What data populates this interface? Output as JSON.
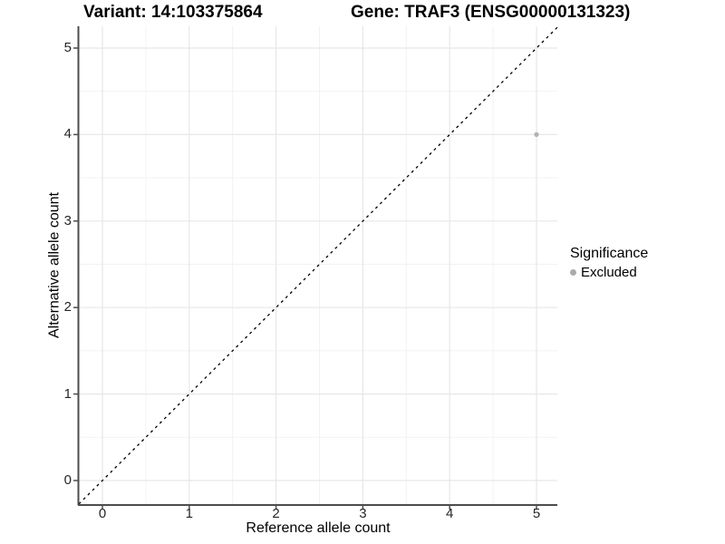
{
  "header": {
    "variant_title": "Variant: 14:103375864",
    "gene_title": "Gene: TRAF3 (ENSG00000131323)"
  },
  "chart_data": {
    "type": "scatter",
    "xlabel": "Reference allele count",
    "ylabel": "Alternative allele count",
    "x_ticks": [
      0,
      1,
      2,
      3,
      4,
      5
    ],
    "y_ticks": [
      0,
      1,
      2,
      3,
      4,
      5
    ],
    "xlim": [
      -0.27,
      5.24
    ],
    "ylim": [
      -0.27,
      5.25
    ],
    "grid": "major and minor gridlines at 0.5 steps, light gray on white",
    "legend_position": "right",
    "identity_line": {
      "slope": 1,
      "intercept": 0,
      "style": "dashed",
      "color": "#000000"
    },
    "series": [
      {
        "name": "Excluded",
        "color": "#b3b3b3",
        "points": [
          {
            "x": 5,
            "y": 4
          }
        ]
      }
    ],
    "legend": {
      "title": "Significance",
      "items": [
        {
          "label": "Excluded",
          "color": "#ababab",
          "marker": "circle"
        }
      ]
    }
  },
  "colors": {
    "background": "#ffffff",
    "grid_major": "#e7e7e7",
    "grid_minor": "#f2f2f2",
    "axis_line": "#4d4d4d",
    "tick_mark": "#4d4d4d",
    "text": "#000000",
    "point": "#b3b3b3"
  }
}
